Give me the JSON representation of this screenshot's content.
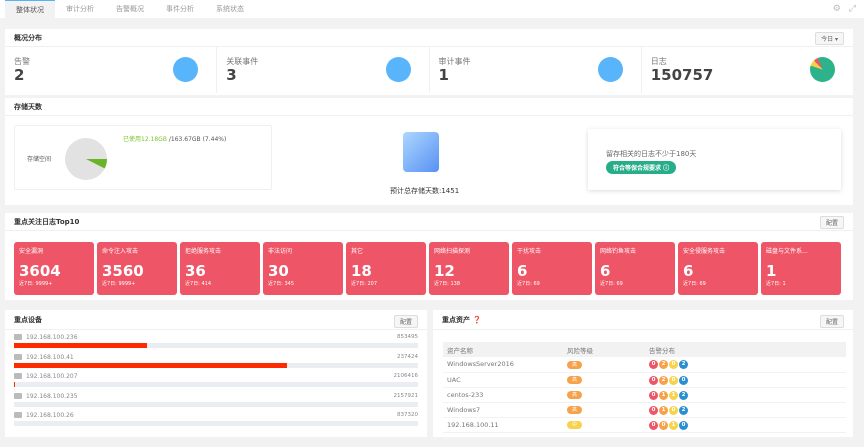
{
  "tabs": [
    "整体状况",
    "审计分析",
    "告警概况",
    "事件分析",
    "系统状态"
  ],
  "overview": {
    "title": "概况分布",
    "range": "今日 ▾",
    "stats": [
      {
        "label": "告警",
        "value": "2"
      },
      {
        "label": "关联事件",
        "value": "3"
      },
      {
        "label": "审计事件",
        "value": "1"
      },
      {
        "label": "日志",
        "value": "150757"
      }
    ]
  },
  "storage": {
    "title": "存储天数",
    "space_label": "存储空间",
    "used": "已使用12.18GB",
    "total": "/163.67GB (7.44%)",
    "used_percent": 7.44,
    "estimate": "预计总存储天数:1451",
    "tip": "留存相关的日志不少于180天",
    "badge": "符合等保合规要求"
  },
  "top10": {
    "title": "重点关注日志Top10",
    "config": "配置",
    "cards": [
      {
        "name": "安全漏洞",
        "value": "3604",
        "sub": "近7日: 9999+"
      },
      {
        "name": "命令注入攻击",
        "value": "3560",
        "sub": "近7日: 9999+"
      },
      {
        "name": "拒绝服务攻击",
        "value": "36",
        "sub": "近7日: 414"
      },
      {
        "name": "非法访问",
        "value": "30",
        "sub": "近7日: 345"
      },
      {
        "name": "其它",
        "value": "18",
        "sub": "近7日: 207"
      },
      {
        "name": "网络扫描探测",
        "value": "12",
        "sub": "近7日: 138"
      },
      {
        "name": "干扰攻击",
        "value": "6",
        "sub": "近7日: 69"
      },
      {
        "name": "网络钓鱼攻击",
        "value": "6",
        "sub": "近7日: 69"
      },
      {
        "name": "安全侵服务攻击",
        "value": "6",
        "sub": "近7日: 69"
      },
      {
        "name": "磁盘与文件系...",
        "value": "1",
        "sub": "近7日: 1"
      }
    ]
  },
  "devices": {
    "title": "重点设备",
    "config": "配置",
    "items": [
      {
        "ip": "192.168.100.236",
        "count": "853495",
        "fill": 0.33
      },
      {
        "ip": "192.168.100.41",
        "count": "237424",
        "fill": 0.675
      },
      {
        "ip": "192.168.100.207",
        "count": "2106416",
        "fill": 0.003
      },
      {
        "ip": "192.168.100.235",
        "count": "2157921",
        "fill": 0
      },
      {
        "ip": "192.168.100.26",
        "count": "837320",
        "fill": 0
      }
    ]
  },
  "assets": {
    "title": "重点资产",
    "config": "配置",
    "headers": [
      "资产名称",
      "风险等级",
      "告警分布"
    ],
    "rows": [
      {
        "name": "WindowsServer2016",
        "risk": "高",
        "alerts": [
          "0",
          "2",
          "0",
          "2"
        ]
      },
      {
        "name": "UAC",
        "risk": "高",
        "alerts": [
          "0",
          "2",
          "0",
          "0"
        ]
      },
      {
        "name": "centos-233",
        "risk": "高",
        "alerts": [
          "0",
          "1",
          "1",
          "2"
        ]
      },
      {
        "name": "Windows7",
        "risk": "高",
        "alerts": [
          "0",
          "1",
          "0",
          "2"
        ]
      },
      {
        "name": "192.168.100.11",
        "risk": "中",
        "alerts": [
          "0",
          "0",
          "1",
          "0"
        ]
      }
    ]
  },
  "colors": {
    "high": "#f7a14a",
    "medium": "#f7d24a",
    "badges": [
      "#ee5566",
      "#f7a14a",
      "#f7d24a",
      "#2a8fd1"
    ]
  }
}
